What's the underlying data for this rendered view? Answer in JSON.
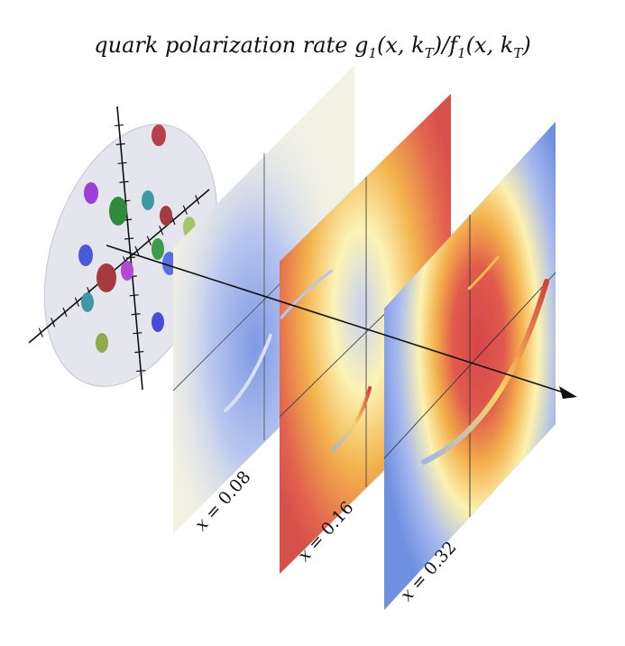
{
  "title": {
    "prefix": "quark polarization rate ",
    "g": "g",
    "g_sub": "1",
    "g_args_a": "(x, k",
    "T1": "T",
    "g_args_b": ")/",
    "f": "f",
    "f_sub": "1",
    "f_args_a": "(x, k",
    "T2": "T",
    "f_args_b": ")"
  },
  "planes": [
    {
      "var": "x",
      "eq": " = 0.08"
    },
    {
      "var": "x",
      "eq": " = 0.16"
    },
    {
      "var": "x",
      "eq": " = 0.32"
    }
  ],
  "colors": {
    "plane1_bg": "#f2f1e4",
    "plane2_bg": "#d9534e",
    "plane3_bg": "#6e8ee0",
    "blue": "#4a6fd8",
    "yellow": "#fbf0a0",
    "red": "#d9474a",
    "disk": "#d8d8e6"
  }
}
